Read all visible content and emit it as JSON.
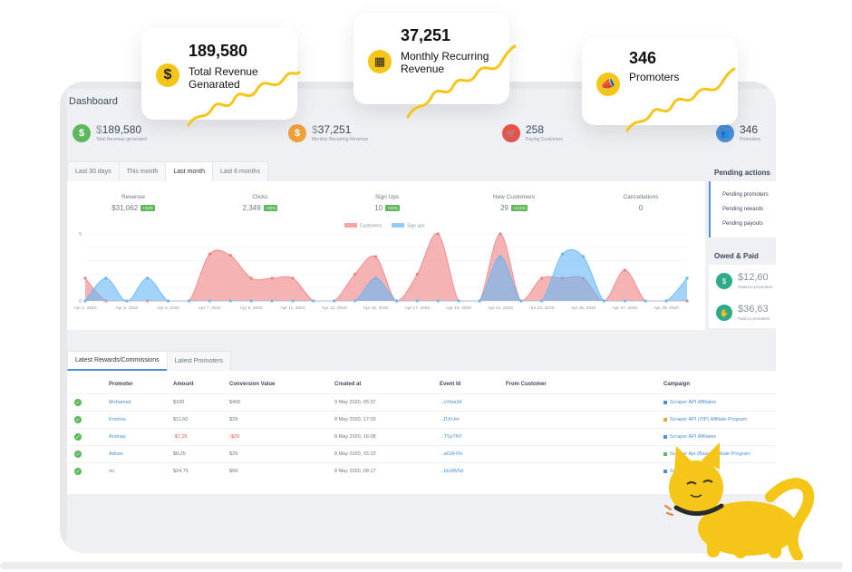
{
  "floating": [
    {
      "value": "189,580",
      "label_line1": "Total Revenue",
      "label_line2": "Genarated",
      "icon": "dollar-icon",
      "glyph": "$"
    },
    {
      "value": "37,251",
      "label_line1": "Monthly Recurring",
      "label_line2": "Revenue",
      "icon": "calendar-icon",
      "glyph": "▦"
    },
    {
      "value": "346",
      "label_line1": "Promoters",
      "label_line2": "",
      "icon": "megaphone-icon",
      "glyph": "📣"
    }
  ],
  "dashboard": {
    "title": "Dashboard"
  },
  "kpis": [
    {
      "value": "189,580",
      "currency": "$",
      "label": "Total Revenue generated",
      "color": "#5cb85c",
      "icon": "dollar-icon",
      "glyph": "$"
    },
    {
      "value": "37,251",
      "currency": "$",
      "label": "Monthly Recurring Revenue",
      "color": "#f0a13a",
      "icon": "dollar-icon",
      "glyph": "$"
    },
    {
      "value": "258",
      "currency": "",
      "label": "Paying Customers",
      "color": "#e5534b",
      "icon": "cart-icon",
      "glyph": "🛒"
    },
    {
      "value": "346",
      "currency": "",
      "label": "Promoters",
      "color": "#4a8fd8",
      "icon": "users-icon",
      "glyph": "👥"
    }
  ],
  "period_tabs": [
    "Last 30 days",
    "This month",
    "Last month",
    "Last 6 months"
  ],
  "active_period": 2,
  "stats": [
    {
      "label": "Revenue",
      "value": "$31,062",
      "badge": "+23%"
    },
    {
      "label": "Clicks",
      "value": "2,349",
      "badge": "+23%"
    },
    {
      "label": "Sign Ups",
      "value": "10",
      "badge": "+43%"
    },
    {
      "label": "New Customers",
      "value": "29",
      "badge": "+141%"
    },
    {
      "label": "Cancellations",
      "value": "0",
      "badge": ""
    }
  ],
  "chart_data": {
    "type": "area",
    "x": [
      "Apr 1, 2020",
      "Apr 2, 2020",
      "Apr 3, 2020",
      "Apr 4, 2020",
      "Apr 5, 2020",
      "Apr 6, 2020",
      "Apr 7, 2020",
      "Apr 8, 2020",
      "Apr 9, 2020",
      "Apr 10, 2020",
      "Apr 11, 2020",
      "Apr 12, 2020",
      "Apr 13, 2020",
      "Apr 14, 2020",
      "Apr 15, 2020",
      "Apr 16, 2020",
      "Apr 17, 2020",
      "Apr 18, 2020",
      "Apr 19, 2020",
      "Apr 20, 2020",
      "Apr 21, 2020",
      "Apr 22, 2020",
      "Apr 23, 2020",
      "Apr 24, 2020",
      "Apr 25, 2020",
      "Apr 26, 2020",
      "Apr 27, 2020",
      "Apr 28, 2020",
      "Apr 29, 2020",
      "Apr 30, 2020"
    ],
    "tick_labels": [
      "Apr 1, 2020",
      "Apr 3, 2020",
      "Apr 5, 2020",
      "Apr 7, 2020",
      "Apr 9, 2020",
      "Apr 11, 2020",
      "Apr 13, 2020",
      "Apr 15, 2020",
      "Apr 17, 2020",
      "Apr 19, 2020",
      "Apr 21, 2020",
      "Apr 23, 2020",
      "Apr 25, 2020",
      "Apr 27, 2020",
      "Apr 29, 2020"
    ],
    "series": [
      {
        "name": "Customers",
        "color": "#f08080",
        "values": [
          1.7,
          0,
          0,
          0,
          0,
          0,
          3.5,
          3.4,
          1.7,
          1.7,
          1.7,
          0,
          0,
          2,
          3.3,
          0,
          2,
          5,
          0,
          0,
          5,
          0,
          1.7,
          1.7,
          1.7,
          0,
          2.3,
          0,
          0,
          0
        ]
      },
      {
        "name": "Sign ups",
        "color": "#64b5f6",
        "values": [
          0,
          1.7,
          0,
          1.7,
          0,
          0,
          0,
          0,
          0,
          0,
          0,
          0,
          0,
          0,
          1.7,
          0,
          0,
          0,
          0,
          0,
          3.3,
          0,
          0,
          3.5,
          3.3,
          0,
          0,
          0,
          0,
          1.7
        ]
      }
    ],
    "yticks": [
      "5",
      "0"
    ],
    "ylim": [
      0,
      5
    ]
  },
  "right_panel": {
    "pending_title": "Pending actions",
    "pending_items": [
      "Pending promoters",
      "Pending rewards",
      "Pending payouts"
    ],
    "owed_title": "Owed & Paid",
    "owed": [
      {
        "value": "$12,60",
        "label": "Owed to promoters"
      },
      {
        "value": "$36,63",
        "label": "Paid to promoters"
      }
    ]
  },
  "table": {
    "tabs": [
      "Latest Rewards/Commissions",
      "Latest Promoters"
    ],
    "headers": [
      "Promoter",
      "Amount",
      "Conversion Value",
      "Created at",
      "Event Id",
      "From Customer",
      "Campaign"
    ],
    "rows": [
      {
        "promoter": "Mohamed",
        "amount": "$100",
        "conversion": "$400",
        "created": "9 May 2020, 05:37",
        "event": "...cVtas34",
        "customer": "",
        "campaign": "Scraper API Affiliates",
        "campaign_color": "#4a8fd8",
        "neg": false
      },
      {
        "promoter": "Krishna",
        "amount": "$11,60",
        "conversion": "$29",
        "created": "8 May 2020, 17:03",
        "event": "...DJrUet",
        "customer": "",
        "campaign": "Scraper API (VIP) Affiliate Program",
        "campaign_color": "#f0a13a",
        "neg": false
      },
      {
        "promoter": "Andraxj",
        "amount": "-$7,25",
        "conversion": "-$29",
        "created": "8 May 2020, 16:08",
        "event": "...TSyTN7",
        "customer": "",
        "campaign": "Scraper API Affiliates",
        "campaign_color": "#4a8fd8",
        "neg": true
      },
      {
        "promoter": "Adnan",
        "amount": "$8,25",
        "conversion": "$29",
        "created": "8 May 2020, 15:23",
        "event": "...aG0HYe",
        "customer": "",
        "campaign": "Scraper Api (Basic) Affiliate Program",
        "campaign_color": "#5cb85c",
        "neg": false
      },
      {
        "promoter": "no",
        "amount": "$24,75",
        "conversion": "$99",
        "created": "8 May 2020, 08:17",
        "event": "...bUdW5d",
        "customer": "",
        "campaign": "Scraper API Affiliates",
        "campaign_color": "#4a8fd8",
        "neg": false
      }
    ]
  }
}
